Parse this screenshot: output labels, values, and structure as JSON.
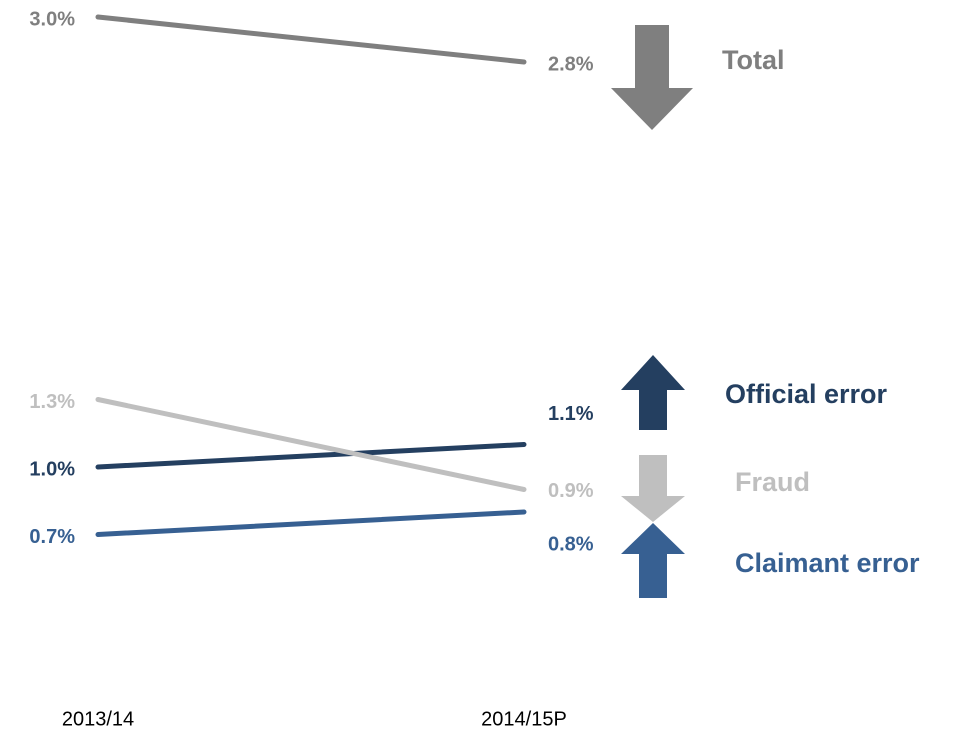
{
  "chart_data": {
    "type": "slope",
    "categories": [
      "2013/14",
      "2014/15P"
    ],
    "series": [
      {
        "name": "Total",
        "color": "#7f7f7f",
        "values": [
          3.0,
          2.8
        ],
        "value_labels": [
          "3.0%",
          "2.8%"
        ]
      },
      {
        "name": "Official error",
        "color": "#243f60",
        "values": [
          1.0,
          1.1
        ],
        "value_labels": [
          "1.0%",
          "1.1%"
        ]
      },
      {
        "name": "Fraud",
        "color": "#bfbfbf",
        "values": [
          1.3,
          0.9
        ],
        "value_labels": [
          "1.3%",
          "0.9%"
        ]
      },
      {
        "name": "Claimant error",
        "color": "#376092",
        "values": [
          0.7,
          0.8
        ],
        "value_labels": [
          "0.7%",
          "0.8%"
        ]
      }
    ]
  }
}
